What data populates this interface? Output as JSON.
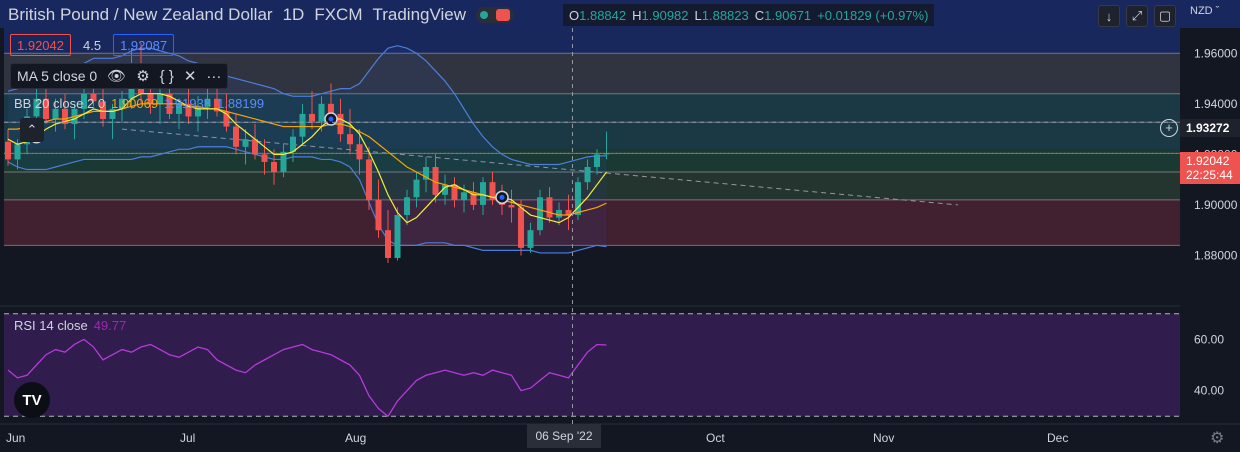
{
  "header": {
    "title": "British Pound / New Zealand Dollar",
    "interval": "1D",
    "broker": "FXCM",
    "platform": "TradingView",
    "ohlc": [
      {
        "k": "O",
        "v": "1.88842"
      },
      {
        "k": "H",
        "v": "1.90982"
      },
      {
        "k": "L",
        "v": "1.88823"
      },
      {
        "k": "C",
        "v": "1.90671"
      },
      {
        "k": "",
        "v": "+0.01829 (+0.97%)"
      }
    ]
  },
  "trade": {
    "sell": "1.92042",
    "spread": "4.5",
    "buy": "1.92087"
  },
  "ma_legend": {
    "label": "MA 5 close 0"
  },
  "bb_legend": {
    "label": "BB 20 close 2 0",
    "v1": "1.90069",
    "v2": "1.91938",
    "v3": "1.88199"
  },
  "rsi_legend": {
    "label": "RSI 14 close",
    "value": "49.77"
  },
  "currency": "NZD",
  "price_tags": {
    "hline": "1.93272",
    "last": "1.92042",
    "countdown": "22:25:44"
  },
  "crosshair_date": "06 Sep '22",
  "colors": {
    "bg": "#131722",
    "up": "#26a69a",
    "down": "#ef5350",
    "ma": "#f7f034",
    "bb_mid": "#f7a600",
    "bb_band": "#4e7dd9",
    "rsi": "#b53bd9"
  },
  "chart_data": {
    "type": "candlestick",
    "price_axis": {
      "ylim": [
        1.86,
        1.97
      ],
      "ticks": [
        "1.96000",
        "1.94000",
        "1.92000",
        "1.90000",
        "1.88000"
      ]
    },
    "rsi_axis": {
      "ylim": [
        27,
        73
      ],
      "ticks": [
        "60.00",
        "40.00"
      ],
      "bands": [
        30,
        70
      ]
    },
    "x_labels": [
      "Jun",
      "Jul",
      "Aug",
      "Oct",
      "Nov",
      "Dec"
    ],
    "zones": [
      {
        "from": 1.96,
        "to": 1.97,
        "color": "#1a2a66"
      },
      {
        "from": 1.944,
        "to": 1.96,
        "color": "#363a45"
      },
      {
        "from": 1.922,
        "to": 1.944,
        "color": "#1d3f4a"
      },
      {
        "from": 1.913,
        "to": 1.922,
        "color": "#1c3f36"
      },
      {
        "from": 1.902,
        "to": 1.913,
        "color": "#283a30"
      },
      {
        "from": 1.884,
        "to": 1.902,
        "color": "#4a2232"
      }
    ],
    "h_lines": [
      1.96,
      1.944,
      1.9327,
      1.9204,
      1.913,
      1.902,
      1.884
    ],
    "candles": [
      {
        "o": 1.925,
        "h": 1.93,
        "l": 1.9155,
        "c": 1.918
      },
      {
        "o": 1.918,
        "h": 1.926,
        "l": 1.914,
        "c": 1.924
      },
      {
        "o": 1.924,
        "h": 1.938,
        "l": 1.92,
        "c": 1.935
      },
      {
        "o": 1.935,
        "h": 1.946,
        "l": 1.93,
        "c": 1.942
      },
      {
        "o": 1.942,
        "h": 1.947,
        "l": 1.932,
        "c": 1.934
      },
      {
        "o": 1.934,
        "h": 1.942,
        "l": 1.929,
        "c": 1.938
      },
      {
        "o": 1.938,
        "h": 1.944,
        "l": 1.93,
        "c": 1.932
      },
      {
        "o": 1.932,
        "h": 1.94,
        "l": 1.926,
        "c": 1.938
      },
      {
        "o": 1.938,
        "h": 1.947,
        "l": 1.934,
        "c": 1.944
      },
      {
        "o": 1.944,
        "h": 1.956,
        "l": 1.939,
        "c": 1.941
      },
      {
        "o": 1.941,
        "h": 1.948,
        "l": 1.931,
        "c": 1.934
      },
      {
        "o": 1.934,
        "h": 1.94,
        "l": 1.926,
        "c": 1.938
      },
      {
        "o": 1.938,
        "h": 1.945,
        "l": 1.933,
        "c": 1.942
      },
      {
        "o": 1.942,
        "h": 1.962,
        "l": 1.938,
        "c": 1.956
      },
      {
        "o": 1.956,
        "h": 1.964,
        "l": 1.94,
        "c": 1.944
      },
      {
        "o": 1.944,
        "h": 1.95,
        "l": 1.936,
        "c": 1.94
      },
      {
        "o": 1.94,
        "h": 1.948,
        "l": 1.932,
        "c": 1.944
      },
      {
        "o": 1.944,
        "h": 1.951,
        "l": 1.934,
        "c": 1.936
      },
      {
        "o": 1.936,
        "h": 1.942,
        "l": 1.93,
        "c": 1.94
      },
      {
        "o": 1.94,
        "h": 1.946,
        "l": 1.932,
        "c": 1.935
      },
      {
        "o": 1.935,
        "h": 1.943,
        "l": 1.929,
        "c": 1.939
      },
      {
        "o": 1.939,
        "h": 1.946,
        "l": 1.934,
        "c": 1.942
      },
      {
        "o": 1.942,
        "h": 1.947,
        "l": 1.935,
        "c": 1.937
      },
      {
        "o": 1.937,
        "h": 1.944,
        "l": 1.929,
        "c": 1.931
      },
      {
        "o": 1.931,
        "h": 1.936,
        "l": 1.92,
        "c": 1.923
      },
      {
        "o": 1.923,
        "h": 1.93,
        "l": 1.916,
        "c": 1.926
      },
      {
        "o": 1.926,
        "h": 1.932,
        "l": 1.918,
        "c": 1.92
      },
      {
        "o": 1.92,
        "h": 1.926,
        "l": 1.912,
        "c": 1.917
      },
      {
        "o": 1.917,
        "h": 1.922,
        "l": 1.908,
        "c": 1.913
      },
      {
        "o": 1.913,
        "h": 1.924,
        "l": 1.911,
        "c": 1.921
      },
      {
        "o": 1.921,
        "h": 1.93,
        "l": 1.917,
        "c": 1.927
      },
      {
        "o": 1.927,
        "h": 1.94,
        "l": 1.924,
        "c": 1.936
      },
      {
        "o": 1.936,
        "h": 1.945,
        "l": 1.93,
        "c": 1.933
      },
      {
        "o": 1.933,
        "h": 1.943,
        "l": 1.929,
        "c": 1.94
      },
      {
        "o": 1.94,
        "h": 1.948,
        "l": 1.933,
        "c": 1.936
      },
      {
        "o": 1.936,
        "h": 1.942,
        "l": 1.925,
        "c": 1.928
      },
      {
        "o": 1.928,
        "h": 1.938,
        "l": 1.92,
        "c": 1.924
      },
      {
        "o": 1.924,
        "h": 1.93,
        "l": 1.912,
        "c": 1.918
      },
      {
        "o": 1.918,
        "h": 1.923,
        "l": 1.898,
        "c": 1.902
      },
      {
        "o": 1.902,
        "h": 1.91,
        "l": 1.887,
        "c": 1.89
      },
      {
        "o": 1.89,
        "h": 1.898,
        "l": 1.877,
        "c": 1.879
      },
      {
        "o": 1.879,
        "h": 1.899,
        "l": 1.878,
        "c": 1.896
      },
      {
        "o": 1.896,
        "h": 1.906,
        "l": 1.892,
        "c": 1.903
      },
      {
        "o": 1.903,
        "h": 1.913,
        "l": 1.899,
        "c": 1.91
      },
      {
        "o": 1.91,
        "h": 1.919,
        "l": 1.905,
        "c": 1.915
      },
      {
        "o": 1.915,
        "h": 1.92,
        "l": 1.901,
        "c": 1.904
      },
      {
        "o": 1.904,
        "h": 1.912,
        "l": 1.9,
        "c": 1.908
      },
      {
        "o": 1.908,
        "h": 1.911,
        "l": 1.899,
        "c": 1.902
      },
      {
        "o": 1.902,
        "h": 1.908,
        "l": 1.897,
        "c": 1.905
      },
      {
        "o": 1.905,
        "h": 1.909,
        "l": 1.898,
        "c": 1.9
      },
      {
        "o": 1.9,
        "h": 1.911,
        "l": 1.896,
        "c": 1.909
      },
      {
        "o": 1.909,
        "h": 1.913,
        "l": 1.9,
        "c": 1.902
      },
      {
        "o": 1.902,
        "h": 1.908,
        "l": 1.896,
        "c": 1.9
      },
      {
        "o": 1.9,
        "h": 1.906,
        "l": 1.893,
        "c": 1.899
      },
      {
        "o": 1.899,
        "h": 1.902,
        "l": 1.88,
        "c": 1.883
      },
      {
        "o": 1.883,
        "h": 1.893,
        "l": 1.881,
        "c": 1.89
      },
      {
        "o": 1.89,
        "h": 1.906,
        "l": 1.888,
        "c": 1.903
      },
      {
        "o": 1.903,
        "h": 1.907,
        "l": 1.893,
        "c": 1.895
      },
      {
        "o": 1.895,
        "h": 1.901,
        "l": 1.892,
        "c": 1.898
      },
      {
        "o": 1.898,
        "h": 1.904,
        "l": 1.89,
        "c": 1.896
      },
      {
        "o": 1.896,
        "h": 1.911,
        "l": 1.894,
        "c": 1.909
      },
      {
        "o": 1.909,
        "h": 1.918,
        "l": 1.906,
        "c": 1.915
      },
      {
        "o": 1.915,
        "h": 1.922,
        "l": 1.912,
        "c": 1.92
      },
      {
        "o": 1.92,
        "h": 1.929,
        "l": 1.918,
        "c": 1.9204
      }
    ],
    "ma": [
      1.926,
      1.924,
      1.925,
      1.927,
      1.93,
      1.932,
      1.933,
      1.934,
      1.936,
      1.938,
      1.937,
      1.937,
      1.938,
      1.942,
      1.944,
      1.944,
      1.944,
      1.943,
      1.941,
      1.939,
      1.938,
      1.938,
      1.938,
      1.936,
      1.932,
      1.929,
      1.926,
      1.923,
      1.92,
      1.92,
      1.921,
      1.924,
      1.927,
      1.931,
      1.934,
      1.934,
      1.932,
      1.928,
      1.921,
      1.913,
      1.904,
      1.897,
      1.893,
      1.895,
      1.899,
      1.903,
      1.907,
      1.908,
      1.906,
      1.904,
      1.904,
      1.903,
      1.903,
      1.902,
      1.899,
      1.896,
      1.895,
      1.894,
      1.893,
      1.895,
      1.899,
      1.903,
      1.908,
      1.913
    ],
    "bb_mid": [
      1.93,
      1.93,
      1.931,
      1.932,
      1.933,
      1.934,
      1.934,
      1.935,
      1.936,
      1.937,
      1.937,
      1.937,
      1.938,
      1.939,
      1.94,
      1.94,
      1.94,
      1.94,
      1.94,
      1.939,
      1.939,
      1.938,
      1.938,
      1.937,
      1.936,
      1.935,
      1.934,
      1.933,
      1.932,
      1.931,
      1.931,
      1.931,
      1.931,
      1.931,
      1.932,
      1.932,
      1.931,
      1.929,
      1.927,
      1.924,
      1.921,
      1.918,
      1.915,
      1.913,
      1.911,
      1.909,
      1.908,
      1.907,
      1.906,
      1.905,
      1.904,
      1.903,
      1.902,
      1.901,
      1.9,
      1.899,
      1.898,
      1.897,
      1.896,
      1.896,
      1.897,
      1.898,
      1.899,
      1.9007
    ],
    "bb_upper": [
      1.945,
      1.946,
      1.948,
      1.95,
      1.952,
      1.953,
      1.953,
      1.954,
      1.956,
      1.958,
      1.958,
      1.958,
      1.959,
      1.961,
      1.962,
      1.962,
      1.961,
      1.96,
      1.959,
      1.957,
      1.956,
      1.954,
      1.953,
      1.951,
      1.95,
      1.949,
      1.948,
      1.947,
      1.946,
      1.944,
      1.943,
      1.943,
      1.943,
      1.944,
      1.945,
      1.946,
      1.946,
      1.948,
      1.953,
      1.958,
      1.962,
      1.963,
      1.962,
      1.96,
      1.957,
      1.953,
      1.949,
      1.944,
      1.938,
      1.932,
      1.927,
      1.923,
      1.92,
      1.918,
      1.917,
      1.916,
      1.916,
      1.916,
      1.916,
      1.917,
      1.918,
      1.919,
      1.9194,
      1.9194
    ],
    "bb_lower": [
      1.917,
      1.915,
      1.914,
      1.914,
      1.914,
      1.915,
      1.916,
      1.917,
      1.918,
      1.918,
      1.918,
      1.918,
      1.918,
      1.918,
      1.919,
      1.919,
      1.92,
      1.921,
      1.922,
      1.922,
      1.923,
      1.923,
      1.923,
      1.923,
      1.922,
      1.921,
      1.92,
      1.919,
      1.918,
      1.918,
      1.919,
      1.919,
      1.919,
      1.918,
      1.918,
      1.917,
      1.915,
      1.91,
      1.901,
      1.892,
      1.886,
      1.884,
      1.884,
      1.884,
      1.885,
      1.885,
      1.885,
      1.884,
      1.884,
      1.883,
      1.882,
      1.882,
      1.882,
      1.882,
      1.882,
      1.882,
      1.881,
      1.881,
      1.881,
      1.881,
      1.882,
      1.883,
      1.884,
      1.8835
    ],
    "rsi": [
      48,
      45,
      46,
      50,
      54,
      56,
      55,
      58,
      60,
      57,
      52,
      54,
      56,
      55,
      57,
      58,
      56,
      54,
      53,
      55,
      57,
      56,
      52,
      50,
      48,
      47,
      50,
      52,
      54,
      56,
      57,
      58,
      56,
      55,
      54,
      52,
      50,
      46,
      38,
      33,
      30,
      36,
      40,
      44,
      46,
      47,
      48,
      47,
      46,
      47,
      46,
      48,
      47,
      46,
      40,
      41,
      44,
      47,
      46,
      45,
      50,
      55,
      58,
      57.8
    ],
    "markers": [
      3,
      34,
      52
    ],
    "trendline": {
      "from": [
        12,
        1.93
      ],
      "to": [
        100,
        1.9
      ]
    },
    "crosshair": {
      "index": 55,
      "price": 1.9327
    }
  }
}
